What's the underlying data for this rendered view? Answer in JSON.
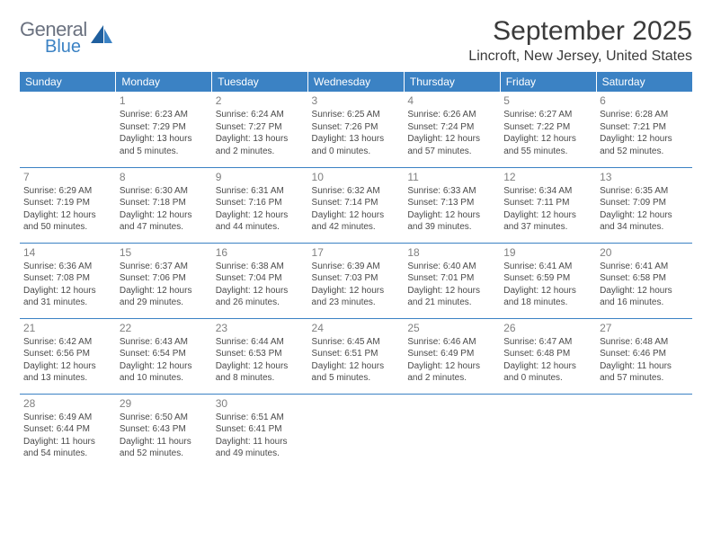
{
  "brand": {
    "line1": "General",
    "line2": "Blue",
    "line1_color": "#6b7280",
    "line2_color": "#3b82c4"
  },
  "header": {
    "month_title": "September 2025",
    "location": "Lincroft, New Jersey, United States"
  },
  "colors": {
    "header_bg": "#3b82c4",
    "header_text": "#ffffff",
    "row_border": "#3b82c4",
    "body_text": "#4a4a4a",
    "daynum": "#808080",
    "page_bg": "#ffffff"
  },
  "typography": {
    "title_fontsize": 30,
    "location_fontsize": 16,
    "dayheader_fontsize": 12,
    "daynum_fontsize": 12,
    "body_fontsize": 10
  },
  "day_headers": [
    "Sunday",
    "Monday",
    "Tuesday",
    "Wednesday",
    "Thursday",
    "Friday",
    "Saturday"
  ],
  "weeks": [
    [
      null,
      {
        "n": "1",
        "sr": "Sunrise: 6:23 AM",
        "ss": "Sunset: 7:29 PM",
        "dl": "Daylight: 13 hours and 5 minutes."
      },
      {
        "n": "2",
        "sr": "Sunrise: 6:24 AM",
        "ss": "Sunset: 7:27 PM",
        "dl": "Daylight: 13 hours and 2 minutes."
      },
      {
        "n": "3",
        "sr": "Sunrise: 6:25 AM",
        "ss": "Sunset: 7:26 PM",
        "dl": "Daylight: 13 hours and 0 minutes."
      },
      {
        "n": "4",
        "sr": "Sunrise: 6:26 AM",
        "ss": "Sunset: 7:24 PM",
        "dl": "Daylight: 12 hours and 57 minutes."
      },
      {
        "n": "5",
        "sr": "Sunrise: 6:27 AM",
        "ss": "Sunset: 7:22 PM",
        "dl": "Daylight: 12 hours and 55 minutes."
      },
      {
        "n": "6",
        "sr": "Sunrise: 6:28 AM",
        "ss": "Sunset: 7:21 PM",
        "dl": "Daylight: 12 hours and 52 minutes."
      }
    ],
    [
      {
        "n": "7",
        "sr": "Sunrise: 6:29 AM",
        "ss": "Sunset: 7:19 PM",
        "dl": "Daylight: 12 hours and 50 minutes."
      },
      {
        "n": "8",
        "sr": "Sunrise: 6:30 AM",
        "ss": "Sunset: 7:18 PM",
        "dl": "Daylight: 12 hours and 47 minutes."
      },
      {
        "n": "9",
        "sr": "Sunrise: 6:31 AM",
        "ss": "Sunset: 7:16 PM",
        "dl": "Daylight: 12 hours and 44 minutes."
      },
      {
        "n": "10",
        "sr": "Sunrise: 6:32 AM",
        "ss": "Sunset: 7:14 PM",
        "dl": "Daylight: 12 hours and 42 minutes."
      },
      {
        "n": "11",
        "sr": "Sunrise: 6:33 AM",
        "ss": "Sunset: 7:13 PM",
        "dl": "Daylight: 12 hours and 39 minutes."
      },
      {
        "n": "12",
        "sr": "Sunrise: 6:34 AM",
        "ss": "Sunset: 7:11 PM",
        "dl": "Daylight: 12 hours and 37 minutes."
      },
      {
        "n": "13",
        "sr": "Sunrise: 6:35 AM",
        "ss": "Sunset: 7:09 PM",
        "dl": "Daylight: 12 hours and 34 minutes."
      }
    ],
    [
      {
        "n": "14",
        "sr": "Sunrise: 6:36 AM",
        "ss": "Sunset: 7:08 PM",
        "dl": "Daylight: 12 hours and 31 minutes."
      },
      {
        "n": "15",
        "sr": "Sunrise: 6:37 AM",
        "ss": "Sunset: 7:06 PM",
        "dl": "Daylight: 12 hours and 29 minutes."
      },
      {
        "n": "16",
        "sr": "Sunrise: 6:38 AM",
        "ss": "Sunset: 7:04 PM",
        "dl": "Daylight: 12 hours and 26 minutes."
      },
      {
        "n": "17",
        "sr": "Sunrise: 6:39 AM",
        "ss": "Sunset: 7:03 PM",
        "dl": "Daylight: 12 hours and 23 minutes."
      },
      {
        "n": "18",
        "sr": "Sunrise: 6:40 AM",
        "ss": "Sunset: 7:01 PM",
        "dl": "Daylight: 12 hours and 21 minutes."
      },
      {
        "n": "19",
        "sr": "Sunrise: 6:41 AM",
        "ss": "Sunset: 6:59 PM",
        "dl": "Daylight: 12 hours and 18 minutes."
      },
      {
        "n": "20",
        "sr": "Sunrise: 6:41 AM",
        "ss": "Sunset: 6:58 PM",
        "dl": "Daylight: 12 hours and 16 minutes."
      }
    ],
    [
      {
        "n": "21",
        "sr": "Sunrise: 6:42 AM",
        "ss": "Sunset: 6:56 PM",
        "dl": "Daylight: 12 hours and 13 minutes."
      },
      {
        "n": "22",
        "sr": "Sunrise: 6:43 AM",
        "ss": "Sunset: 6:54 PM",
        "dl": "Daylight: 12 hours and 10 minutes."
      },
      {
        "n": "23",
        "sr": "Sunrise: 6:44 AM",
        "ss": "Sunset: 6:53 PM",
        "dl": "Daylight: 12 hours and 8 minutes."
      },
      {
        "n": "24",
        "sr": "Sunrise: 6:45 AM",
        "ss": "Sunset: 6:51 PM",
        "dl": "Daylight: 12 hours and 5 minutes."
      },
      {
        "n": "25",
        "sr": "Sunrise: 6:46 AM",
        "ss": "Sunset: 6:49 PM",
        "dl": "Daylight: 12 hours and 2 minutes."
      },
      {
        "n": "26",
        "sr": "Sunrise: 6:47 AM",
        "ss": "Sunset: 6:48 PM",
        "dl": "Daylight: 12 hours and 0 minutes."
      },
      {
        "n": "27",
        "sr": "Sunrise: 6:48 AM",
        "ss": "Sunset: 6:46 PM",
        "dl": "Daylight: 11 hours and 57 minutes."
      }
    ],
    [
      {
        "n": "28",
        "sr": "Sunrise: 6:49 AM",
        "ss": "Sunset: 6:44 PM",
        "dl": "Daylight: 11 hours and 54 minutes."
      },
      {
        "n": "29",
        "sr": "Sunrise: 6:50 AM",
        "ss": "Sunset: 6:43 PM",
        "dl": "Daylight: 11 hours and 52 minutes."
      },
      {
        "n": "30",
        "sr": "Sunrise: 6:51 AM",
        "ss": "Sunset: 6:41 PM",
        "dl": "Daylight: 11 hours and 49 minutes."
      },
      null,
      null,
      null,
      null
    ]
  ]
}
